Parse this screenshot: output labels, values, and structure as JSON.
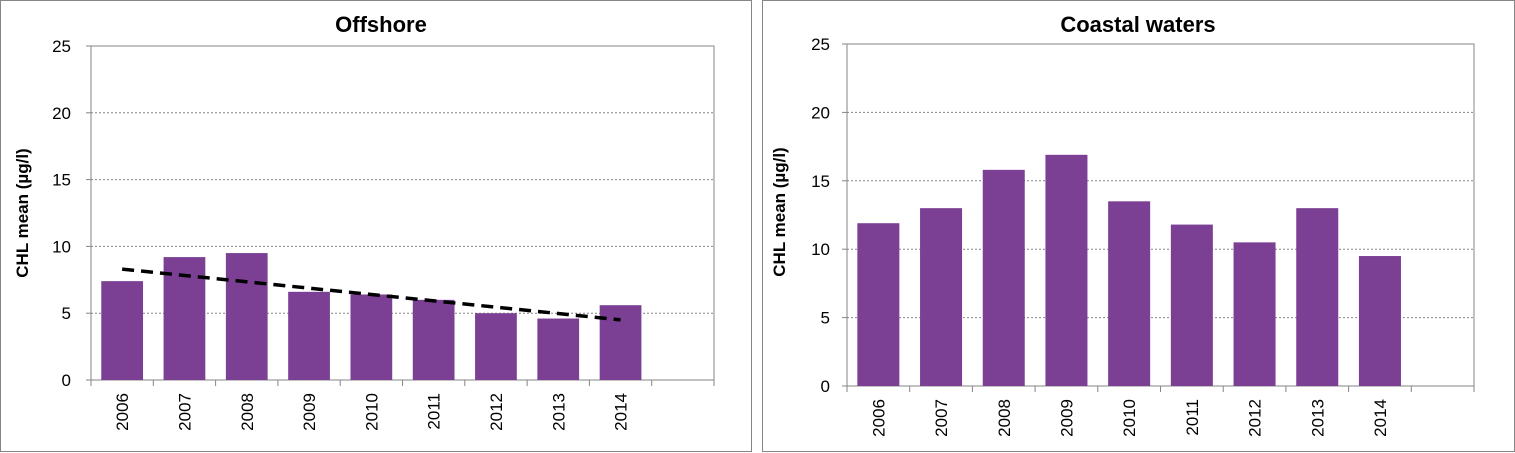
{
  "chart_data": [
    {
      "type": "bar",
      "title": "Offshore",
      "xlabel": "",
      "ylabel": "CHL mean (µg/l)",
      "categories": [
        "2006",
        "2007",
        "2008",
        "2009",
        "2010",
        "2011",
        "2012",
        "2013",
        "2014",
        ""
      ],
      "values": [
        7.4,
        9.2,
        9.5,
        6.6,
        6.4,
        6.0,
        5.0,
        4.6,
        5.6,
        null
      ],
      "ylim": [
        0,
        25
      ],
      "yticks": [
        "0",
        "5",
        "10",
        "15",
        "20",
        "25"
      ],
      "grid": true,
      "bar_color": "#7b3f94",
      "trendline": {
        "style": "dashed",
        "color": "#000000",
        "start": 8.3,
        "end": 4.5
      }
    },
    {
      "type": "bar",
      "title": "Coastal waters",
      "xlabel": "",
      "ylabel": "CHL mean (µg/l)",
      "categories": [
        "2006",
        "2007",
        "2008",
        "2009",
        "2010",
        "2011",
        "2012",
        "2013",
        "2014",
        ""
      ],
      "values": [
        11.9,
        13.0,
        15.8,
        16.9,
        13.5,
        11.8,
        10.5,
        13.0,
        9.5,
        null
      ],
      "ylim": [
        0,
        25
      ],
      "yticks": [
        "0",
        "5",
        "10",
        "15",
        "20",
        "25"
      ],
      "grid": true,
      "bar_color": "#7b3f94"
    }
  ]
}
